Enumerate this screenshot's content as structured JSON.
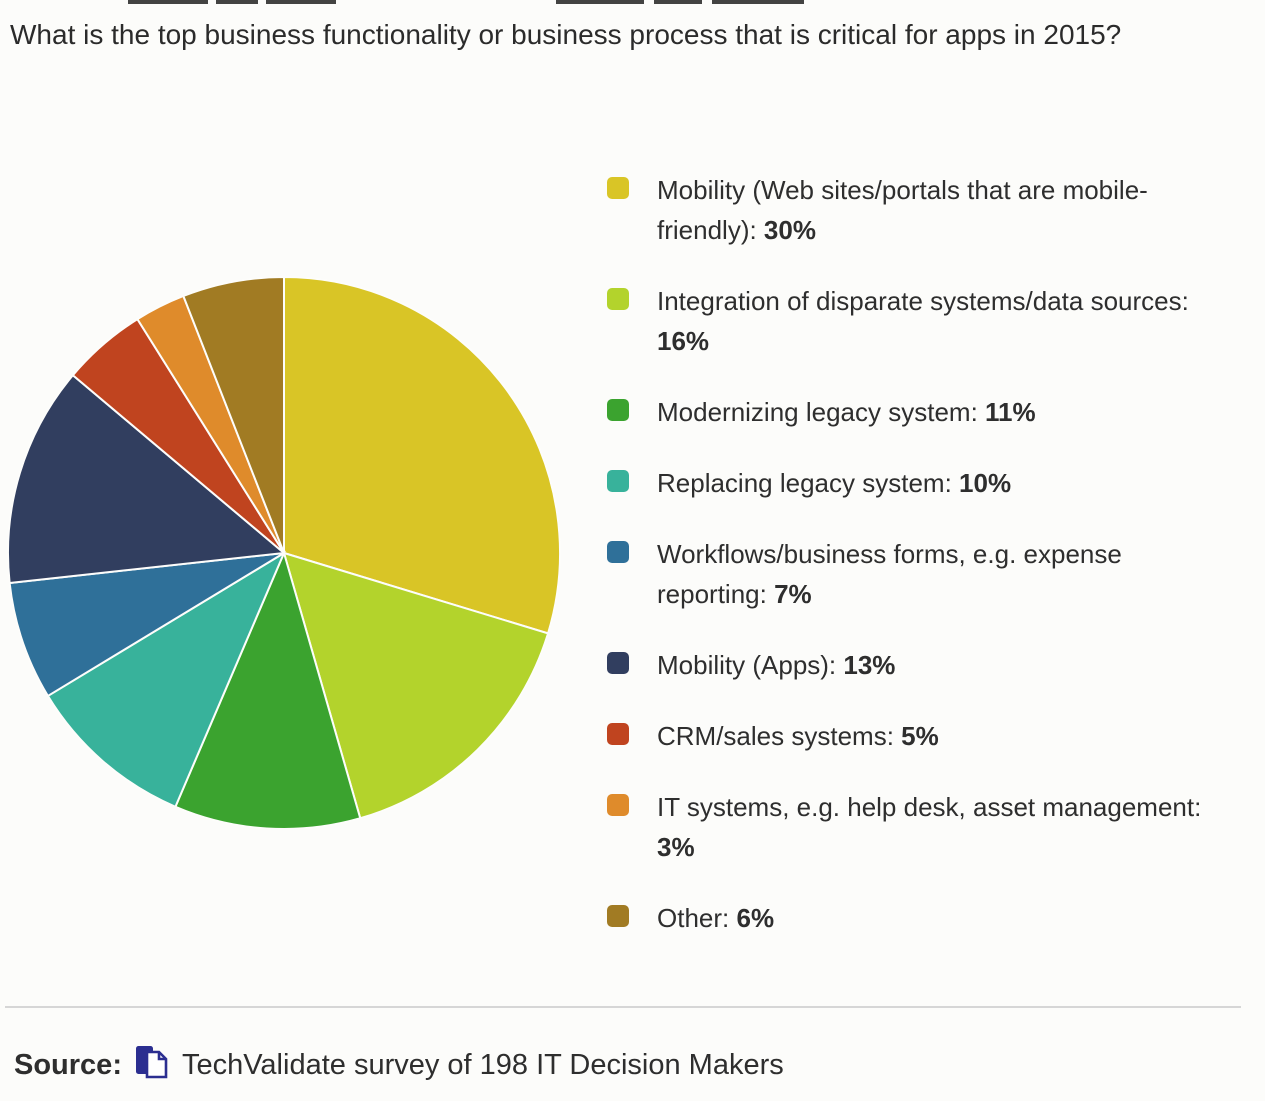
{
  "header": {
    "title": "What is the top business functionality or business process that is critical for apps in 2015?"
  },
  "chart_data": {
    "type": "pie",
    "title": "What is the top business functionality or business process that is critical for apps in 2015?",
    "unit": "%",
    "legend_position": "right",
    "start_angle": "12-o'clock",
    "direction": "clockwise",
    "separator_color": "#fdfdfb",
    "slices": [
      {
        "id": "mobility-web",
        "label": "Mobility (Web sites/portals that are mobile-friendly)",
        "value": 30,
        "percent_label": "30%",
        "color": "#d9c526"
      },
      {
        "id": "integration",
        "label": "Integration of disparate systems/data sources",
        "value": 16,
        "percent_label": "16%",
        "color": "#b3d32c"
      },
      {
        "id": "modernizing-legacy",
        "label": "Modernizing legacy system",
        "value": 11,
        "percent_label": "11%",
        "color": "#3ba32f"
      },
      {
        "id": "replacing-legacy",
        "label": "Replacing legacy system",
        "value": 10,
        "percent_label": "10%",
        "color": "#38b29b"
      },
      {
        "id": "workflows",
        "label": "Workflows/business forms, e.g. expense reporting",
        "value": 7,
        "percent_label": "7%",
        "color": "#2f7099"
      },
      {
        "id": "mobility-apps",
        "label": "Mobility (Apps)",
        "value": 13,
        "percent_label": "13%",
        "color": "#313e5f"
      },
      {
        "id": "crm-sales",
        "label": "CRM/sales systems",
        "value": 5,
        "percent_label": "5%",
        "color": "#c0441f"
      },
      {
        "id": "it-systems",
        "label": "IT systems, e.g. help desk, asset management",
        "value": 3,
        "percent_label": "3%",
        "color": "#df8b2b"
      },
      {
        "id": "other",
        "label": "Other",
        "value": 6,
        "percent_label": "6%",
        "color": "#a17b23"
      }
    ]
  },
  "source": {
    "label": "Source:",
    "text": "TechValidate survey of 198 IT Decision Makers",
    "icon": "overlapping-documents-icon",
    "label_color": "#3a3a9c",
    "icon_color": "#2b2e90"
  }
}
